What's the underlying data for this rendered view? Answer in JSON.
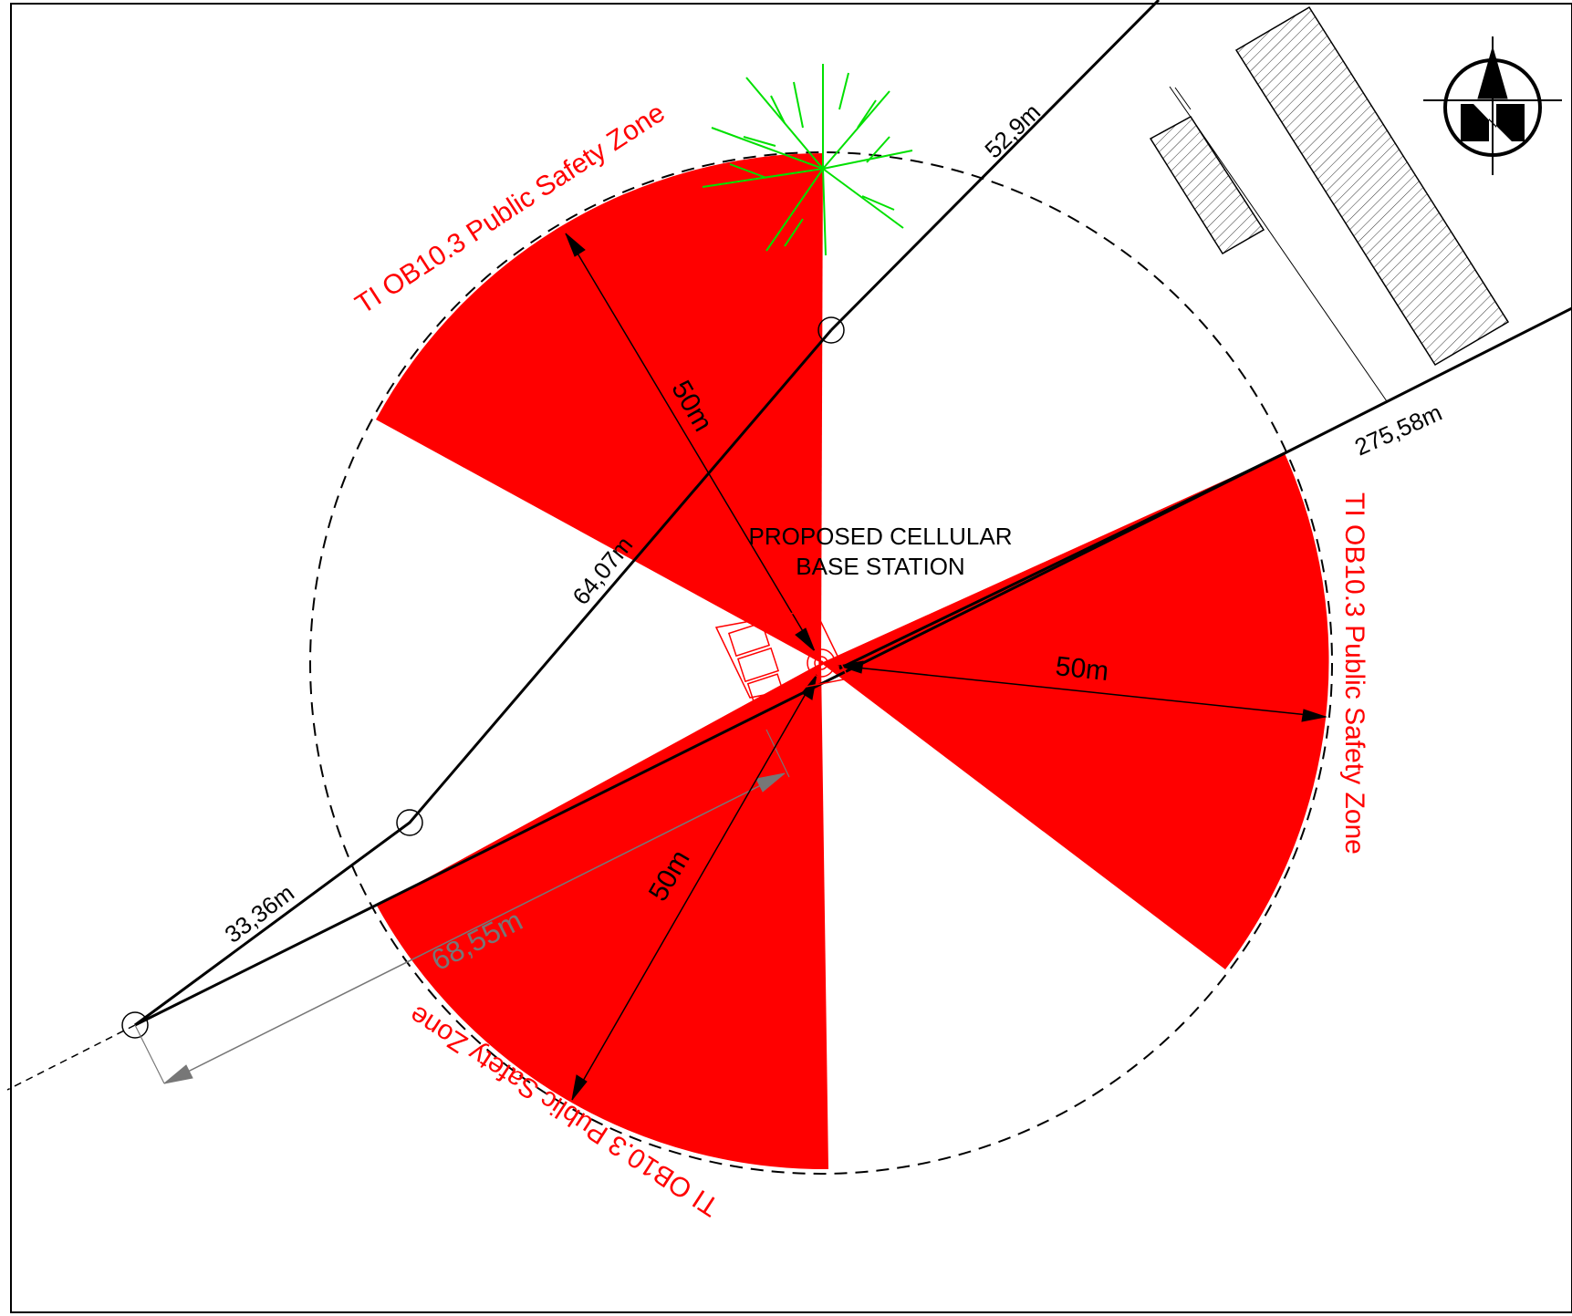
{
  "colors": {
    "zone_fill": "#ff0000",
    "zone_label": "#ff0000",
    "tree": "#00e000",
    "dimension_grey": "#777777",
    "line": "#000000"
  },
  "icons": {
    "north_arrow": "north-arrow-icon",
    "tree": "tree-icon"
  },
  "zones": [
    {
      "label": "TI OB10.3 Public Safety Zone",
      "radius": "50m"
    },
    {
      "label": "TI OB10.3 Public Safety Zone",
      "radius": "50m"
    },
    {
      "label": "TI OB10.3 Public Safety Zone",
      "radius": "50m"
    }
  ],
  "base_station": {
    "label_line1": "PROPOSED CELLULAR",
    "label_line2": "BASE STATION"
  },
  "distances": {
    "road_north": "52,9m",
    "road_east": "275,58m",
    "path_mid": "64,07m",
    "path_low": "33,36m",
    "offset": "68,55m"
  }
}
